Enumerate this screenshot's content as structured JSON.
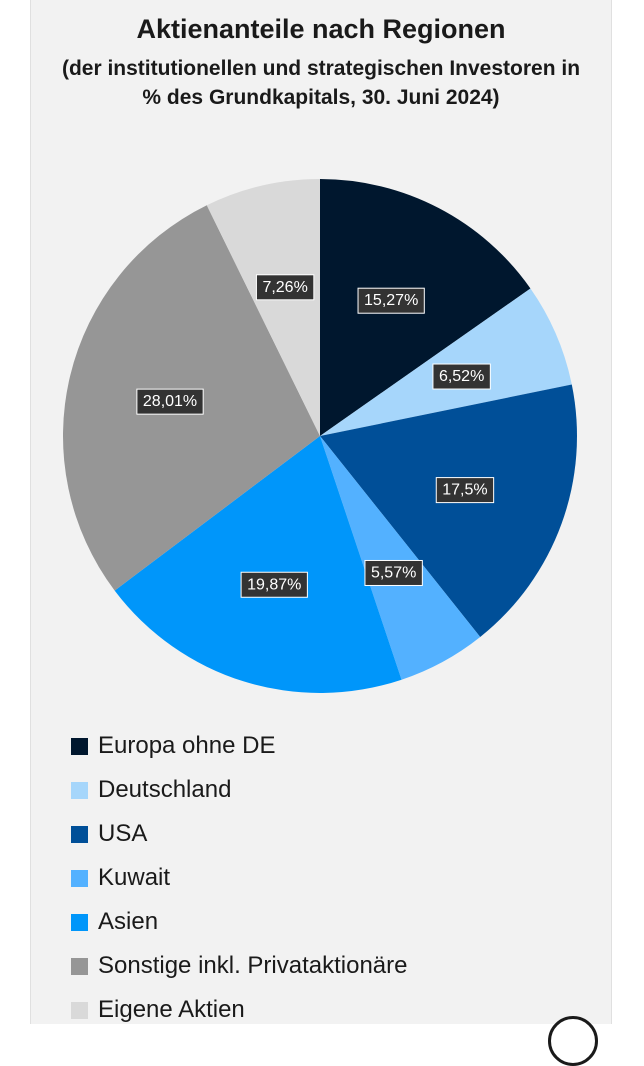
{
  "chart_data": {
    "type": "pie",
    "title": "Aktienanteile nach Regionen",
    "subtitle": "(der institutionellen und strategischen Investoren in % des Grundkapitals, 30. Juni 2024)",
    "categories": [
      "Europa ohne DE",
      "Deutschland",
      "USA",
      "Kuwait",
      "Asien",
      "Sonstige inkl. Privataktionäre",
      "Eigene Aktien"
    ],
    "values": [
      15.27,
      6.52,
      17.5,
      5.57,
      19.87,
      28.01,
      7.26
    ],
    "value_labels": [
      "15,27%",
      "6,52%",
      "17,5%",
      "5,57%",
      "19,87%",
      "28,01%",
      "7,26%"
    ],
    "colors": [
      "#00172e",
      "#a6d6fb",
      "#004f98",
      "#53b1ff",
      "#0096fa",
      "#969696",
      "#d9d9d9"
    ],
    "start_angle_deg": 0,
    "direction": "clockwise",
    "legend_position": "bottom"
  }
}
